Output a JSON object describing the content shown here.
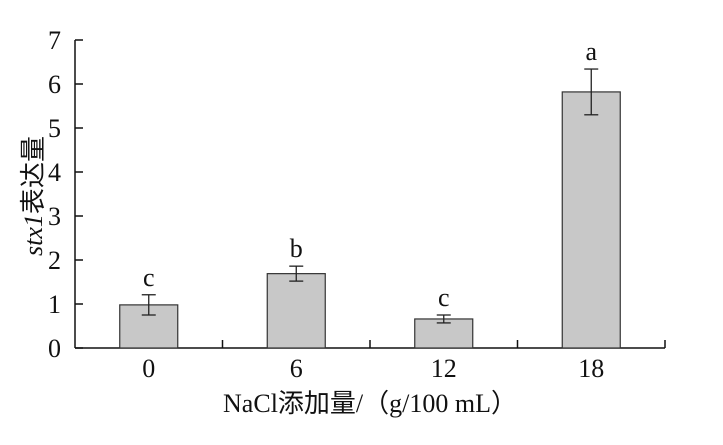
{
  "chart_data": {
    "type": "bar",
    "categories": [
      "0",
      "6",
      "12",
      "18"
    ],
    "values": [
      0.98,
      1.69,
      0.66,
      5.82
    ],
    "errors": [
      0.23,
      0.17,
      0.09,
      0.52
    ],
    "significance": [
      "c",
      "b",
      "c",
      "a"
    ],
    "xlabel": "NaCl添加量/（g/100 mL）",
    "ylabel": {
      "italic_part": "stx1",
      "rest": "表达量"
    },
    "ylim": [
      0,
      7
    ],
    "yticks": [
      "0",
      "1",
      "2",
      "3",
      "4",
      "5",
      "6",
      "7"
    ],
    "grid": false,
    "bar_color": "#c8c8c8",
    "edge_color": "#333333"
  }
}
